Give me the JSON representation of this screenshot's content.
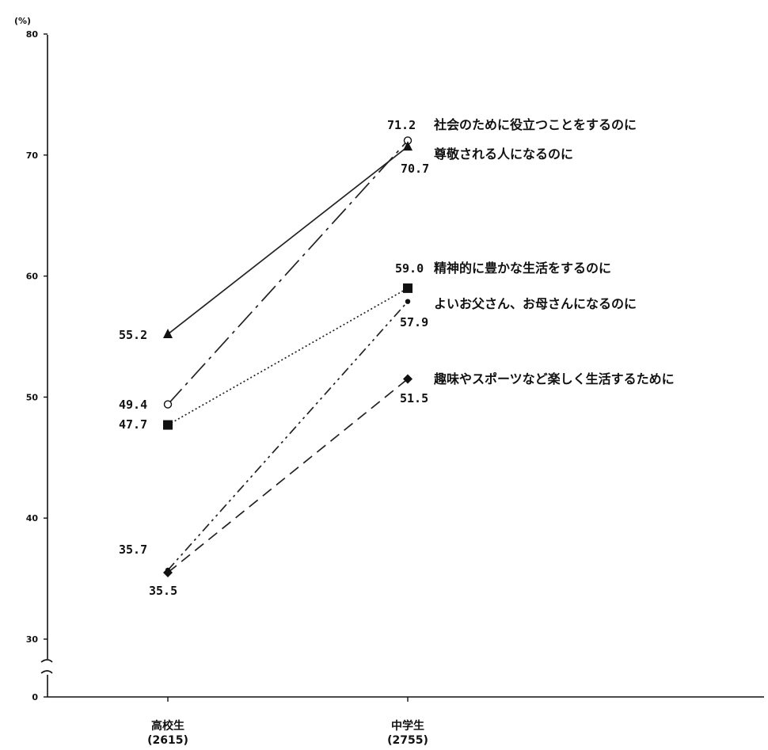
{
  "chart_data": {
    "type": "line",
    "ylabel": "(%)",
    "ylim": [
      0,
      80
    ],
    "axis_break": {
      "from": 0,
      "to": 30
    },
    "y_ticks": [
      0,
      30,
      40,
      50,
      60,
      70,
      80
    ],
    "y_tick_labels": [
      "0",
      "30",
      "40",
      "50",
      "60",
      "70",
      "80"
    ],
    "categories": [
      {
        "name": "高校生",
        "n": "(2615)"
      },
      {
        "name": "中学生",
        "n": "(2755)"
      }
    ],
    "series": [
      {
        "name": "社会のために役立つことをするのに",
        "values": [
          49.4,
          71.2
        ],
        "value_labels": [
          "49.4",
          "71.2"
        ],
        "line_style": "long-dash-dot",
        "marker": "open-circle"
      },
      {
        "name": "尊敬される人になるのに",
        "values": [
          55.2,
          70.7
        ],
        "value_labels": [
          "55.2",
          "70.7"
        ],
        "line_style": "solid",
        "marker": "triangle"
      },
      {
        "name": "精神的に豊かな生活をするのに",
        "values": [
          47.7,
          59.0
        ],
        "value_labels": [
          "47.7",
          "59.0"
        ],
        "line_style": "dotted",
        "marker": "square"
      },
      {
        "name": "よいお父さん、お母さんになるのに",
        "values": [
          35.7,
          57.9
        ],
        "value_labels": [
          "35.7",
          "57.9"
        ],
        "line_style": "dash-dot-dot",
        "marker": "small-dot"
      },
      {
        "name": "趣味やスポーツなど楽しく生活するために",
        "values": [
          35.5,
          51.5
        ],
        "value_labels": [
          "35.5",
          "51.5"
        ],
        "line_style": "dashed",
        "marker": "diamond"
      }
    ]
  },
  "value_text": {
    "hs_55_2": "55.2",
    "hs_49_4": "49.4",
    "hs_47_7": "47.7",
    "hs_35_7": "35.7",
    "hs_35_5": "35.5",
    "ms_71_2": "71.2",
    "ms_70_7": "70.7",
    "ms_59_0": "59.0",
    "ms_57_9": "57.9",
    "ms_51_5": "51.5"
  }
}
